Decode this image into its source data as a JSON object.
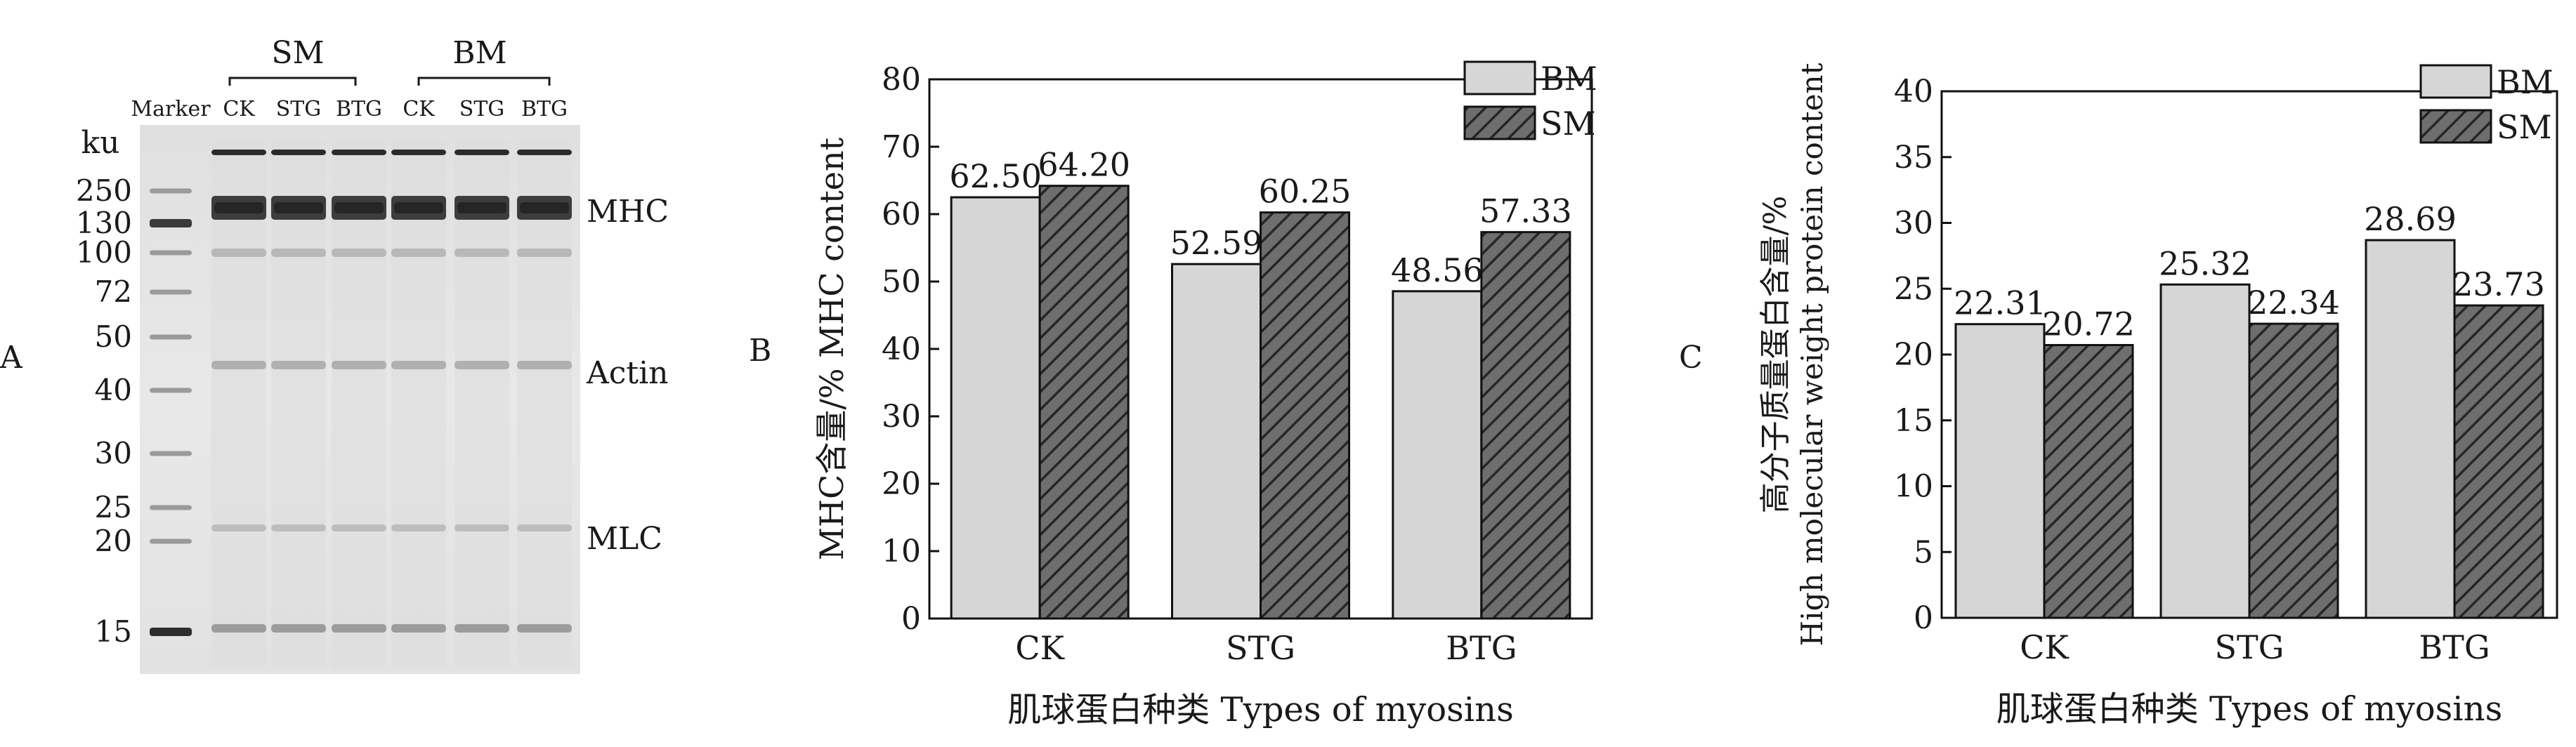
{
  "panel_a": {
    "panel_letter": "A",
    "unit_label": "ku",
    "marker_label": "Marker",
    "group_labels": [
      "SM",
      "BM"
    ],
    "lane_labels": [
      "CK",
      "STG",
      "BTG",
      "CK",
      "STG",
      "BTG"
    ],
    "marker_values": [
      "250",
      "130",
      "100",
      "72",
      "50",
      "40",
      "30",
      "25",
      "20",
      "15"
    ],
    "band_labels": [
      "MHC",
      "Actin",
      "MLC"
    ]
  },
  "panel_b": {
    "panel_letter": "B"
  },
  "panel_c": {
    "panel_letter": "C"
  },
  "colors": {
    "bm_fill": "#d6d6d6",
    "sm_fill": "#6e6e6e",
    "gel_background": "#e6e6e6"
  },
  "chart_data": [
    {
      "type": "bar",
      "panel": "B",
      "categories": [
        "CK",
        "STG",
        "BTG"
      ],
      "series": [
        {
          "name": "BM",
          "values": [
            62.5,
            52.59,
            48.56
          ]
        },
        {
          "name": "SM",
          "values": [
            64.2,
            60.25,
            57.33
          ]
        }
      ],
      "data_labels": [
        [
          "62.50",
          "52.59",
          "48.56"
        ],
        [
          "64.20",
          "60.25",
          "57.33"
        ]
      ],
      "ylim": [
        0,
        80
      ],
      "yticks": [
        "0",
        "10",
        "20",
        "30",
        "40",
        "50",
        "60",
        "70",
        "80"
      ],
      "xlabel": "肌球蛋白种类 Types of myosins",
      "ylabel": "MHC含量/% MHC content",
      "legend": "top-right",
      "grid": false
    },
    {
      "type": "bar",
      "panel": "C",
      "categories": [
        "CK",
        "STG",
        "BTG"
      ],
      "series": [
        {
          "name": "BM",
          "values": [
            22.31,
            25.32,
            28.69
          ]
        },
        {
          "name": "SM",
          "values": [
            20.72,
            22.34,
            23.73
          ]
        }
      ],
      "data_labels": [
        [
          "22.31",
          "25.32",
          "28.69"
        ],
        [
          "20.72",
          "22.34",
          "23.73"
        ]
      ],
      "ylim": [
        0,
        40
      ],
      "yticks": [
        "0",
        "5",
        "10",
        "15",
        "20",
        "25",
        "30",
        "35",
        "40"
      ],
      "xlabel": "肌球蛋白种类 Types of myosins",
      "ylabel_cn": "高分子质量蛋白含量/%",
      "ylabel_en": "High molecular weight protein content",
      "legend": "top-right",
      "grid": false
    }
  ]
}
